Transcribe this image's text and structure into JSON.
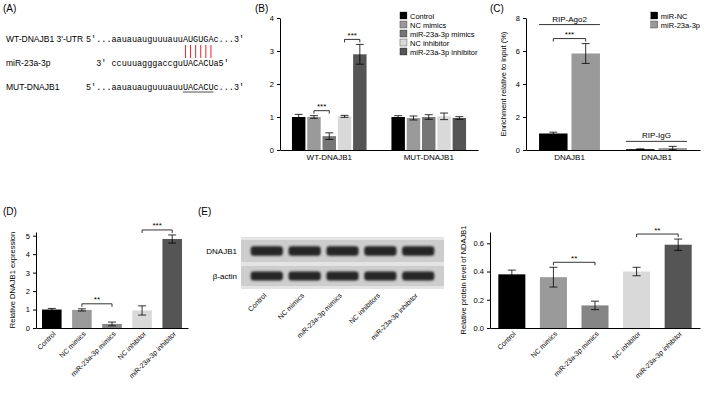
{
  "sequence_panel": {
    "label": "(A)",
    "rows": [
      {
        "name": "WT-DNAJB1 3'-UTR",
        "sequence": "5'...aauauauguuuauuAUGUGAc...3'"
      },
      {
        "name": "miR-23a-3p",
        "sequence": "3' ccuuuagggaccguUACACUa5'"
      },
      {
        "name": "MUT-DNAJB1",
        "sequence": "5'...aauauauguuuauuUACACUc...3'",
        "underlined": "UACACU"
      }
    ]
  },
  "chart_data": [
    {
      "type": "bar",
      "title": "(B)",
      "categories": [
        "WT-DNAJB1",
        "MUT-DNAJB1"
      ],
      "series": [
        {
          "name": "Control",
          "color": "#000000",
          "values": [
            1.0,
            1.0
          ],
          "errors": [
            0.08,
            0.04
          ]
        },
        {
          "name": "NC mimics",
          "color": "#9a9a9a",
          "values": [
            1.0,
            0.97
          ],
          "errors": [
            0.04,
            0.06
          ]
        },
        {
          "name": "miR-23a-3p mimics",
          "color": "#767676",
          "values": [
            0.42,
            1.0
          ],
          "errors": [
            0.1,
            0.07
          ]
        },
        {
          "name": "NC inhibitor",
          "color": "#d9d9d9",
          "values": [
            1.02,
            1.02
          ],
          "errors": [
            0.03,
            0.1
          ]
        },
        {
          "name": "miR-23a-3p inhibitor",
          "color": "#555555",
          "values": [
            2.9,
            0.97
          ],
          "errors": [
            0.3,
            0.04
          ]
        }
      ],
      "ylim": [
        0,
        4
      ],
      "yticks": [
        0,
        1,
        2,
        3,
        4
      ],
      "legend": "top-right",
      "annotations": [
        {
          "text": "***",
          "category": "WT-DNAJB1",
          "from": "NC mimics",
          "to": "miR-23a-3p mimics"
        },
        {
          "text": "***",
          "category": "WT-DNAJB1",
          "from": "NC inhibitor",
          "to": "miR-23a-3p inhibitor"
        }
      ]
    },
    {
      "type": "bar",
      "title": "(C)",
      "y_label": "Enrichment relative to input (%)",
      "categories": [
        "DNAJB1",
        "DNAJB1"
      ],
      "group_titles": [
        "RIP-Ago2",
        "RIP-IgG"
      ],
      "series": [
        {
          "name": "miR-NC",
          "color": "#000000",
          "values": [
            1.0,
            0.05
          ],
          "errors": [
            0.08,
            0.02
          ]
        },
        {
          "name": "miR-23a-3p",
          "color": "#9a9a9a",
          "values": [
            5.85,
            0.12
          ],
          "errors": [
            0.6,
            0.1
          ]
        }
      ],
      "ylim": [
        0,
        8
      ],
      "yticks": [
        0,
        2,
        4,
        6,
        8
      ],
      "legend": "top-right",
      "annotations": [
        {
          "text": "***",
          "group": "RIP-Ago2",
          "from": "miR-NC",
          "to": "miR-23a-3p"
        }
      ]
    },
    {
      "type": "bar",
      "title": "(D)",
      "y_label": "Relative DNAJB1 expression",
      "categories": [
        "Control",
        "NC mimics",
        "miR-23a-3p mimics",
        "NC inhibitor",
        "miR-23a-3p inhibitor"
      ],
      "series": [
        {
          "values": [
            1.0,
            0.98,
            0.22,
            0.95,
            4.82
          ],
          "errors": [
            0.06,
            0.06,
            0.1,
            0.25,
            0.22
          ],
          "colors": [
            "#000000",
            "#9a9a9a",
            "#858585",
            "#d9d9d9",
            "#555555"
          ]
        }
      ],
      "ylim": [
        0,
        5.2
      ],
      "yticks": [
        0,
        1,
        2,
        3,
        4,
        5
      ],
      "annotations": [
        {
          "text": "**",
          "from": "NC mimics",
          "to": "miR-23a-3p mimics"
        },
        {
          "text": "***",
          "from": "NC inhibitor",
          "to": "miR-23a-3p inhibitor"
        }
      ]
    },
    {
      "type": "bar",
      "title": "(E)",
      "y_label": "Relative protein level of NDAJB1",
      "categories": [
        "Control",
        "NC mimics",
        "miR-23a-3p mimics",
        "NC inhibitor",
        "miR-23a-3p inhibitor"
      ],
      "series": [
        {
          "values": [
            0.38,
            0.36,
            0.16,
            0.4,
            0.59
          ],
          "errors": [
            0.03,
            0.07,
            0.03,
            0.03,
            0.04
          ],
          "colors": [
            "#000000",
            "#9a9a9a",
            "#858585",
            "#d9d9d9",
            "#555555"
          ]
        }
      ],
      "ylim": [
        0,
        0.68
      ],
      "yticks": [
        {
          "value": 0,
          "label": "0.0"
        },
        0.2,
        0.4,
        0.6
      ],
      "annotations": [
        {
          "text": "**",
          "from": "NC mimics",
          "to": "miR-23a-3p mimics"
        },
        {
          "text": "**",
          "from": "NC inhibitor",
          "to": "miR-23a-3p inhibitor"
        }
      ],
      "blot": {
        "rows": [
          "DNAJB1",
          "β-actin"
        ],
        "lanes": [
          "Control",
          "NC mimics",
          "miR-23a-3p mimics",
          "NC inhibitors",
          "miR-23a-3p inhibitor"
        ]
      }
    }
  ]
}
